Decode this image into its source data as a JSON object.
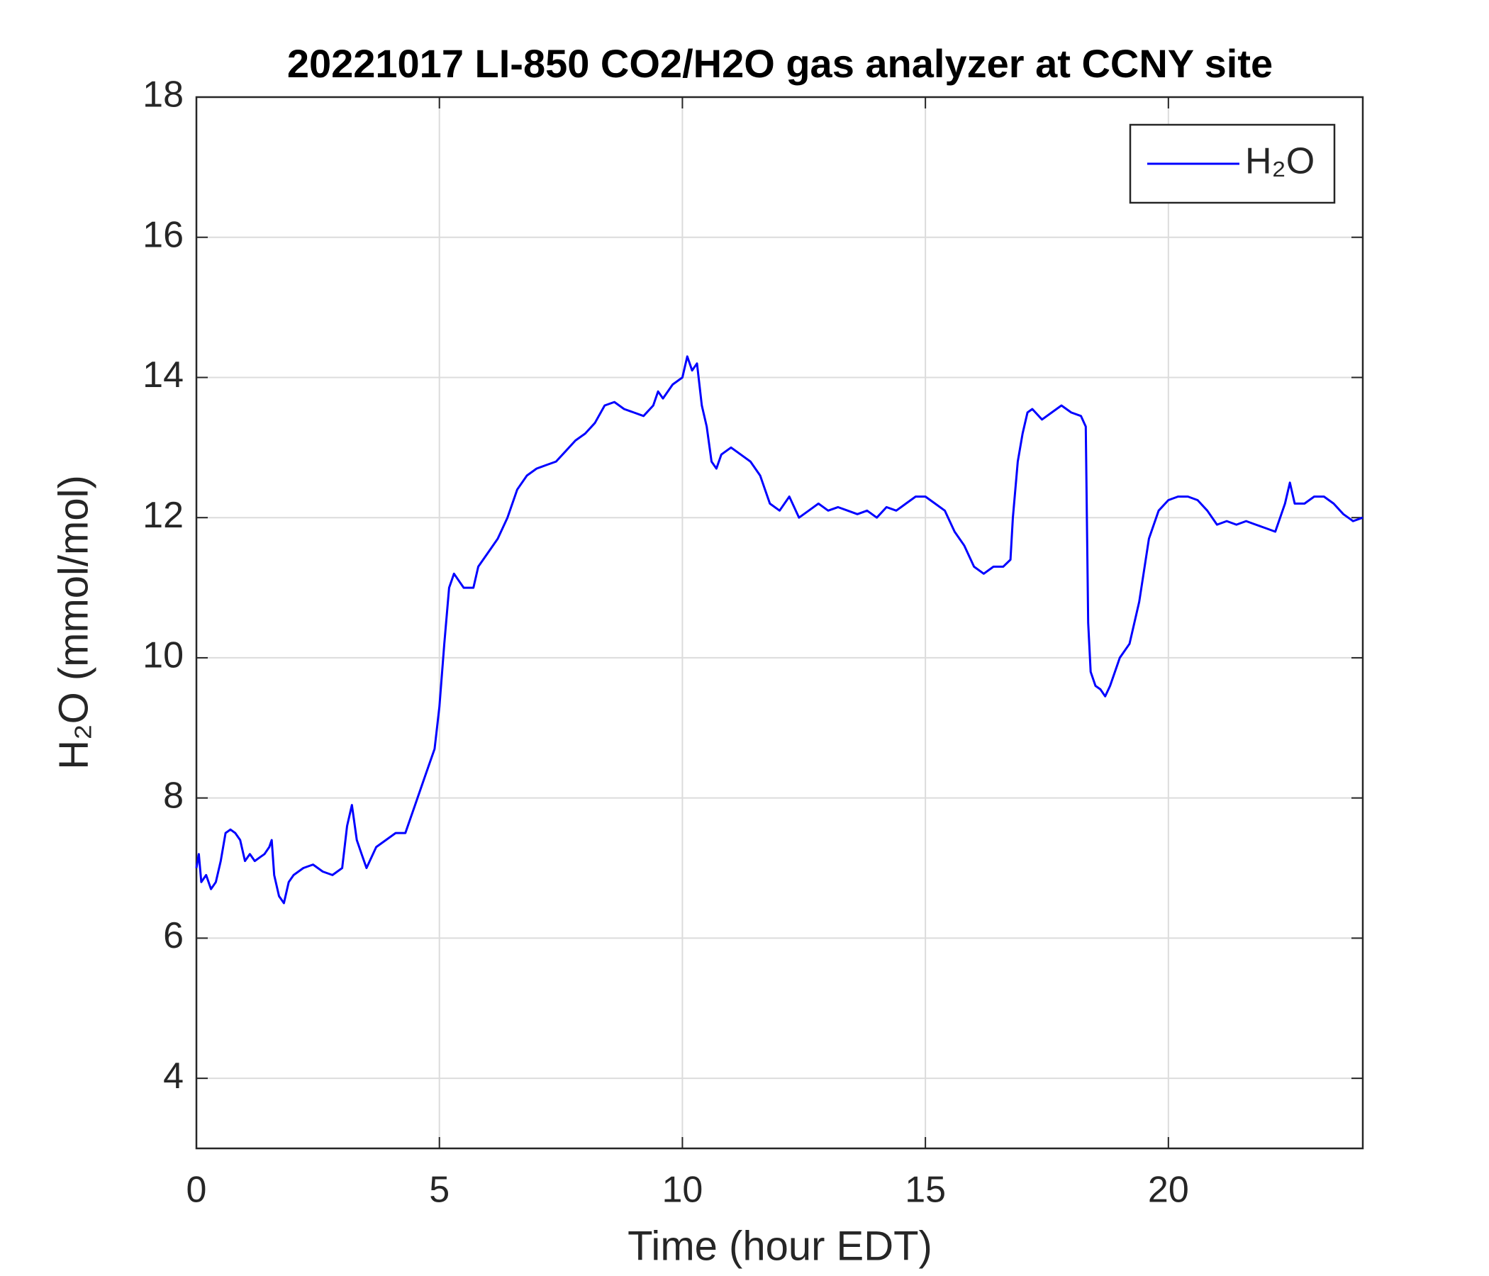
{
  "chart_data": {
    "type": "line",
    "title": "20221017 LI-850 CO2/H2O gas analyzer at CCNY site",
    "x_label": "Time (hour EDT)",
    "y_label": "H₂O (mmol/mol)",
    "xlim": [
      0,
      24
    ],
    "ylim": [
      3,
      18
    ],
    "xticks": [
      0,
      5,
      10,
      15,
      20
    ],
    "yticks": [
      4,
      6,
      8,
      10,
      12,
      14,
      16,
      18
    ],
    "grid": true,
    "legend": "upper right",
    "x": [
      0,
      0.05,
      0.1,
      0.2,
      0.3,
      0.4,
      0.5,
      0.6,
      0.7,
      0.8,
      0.9,
      1.0,
      1.1,
      1.2,
      1.3,
      1.4,
      1.5,
      1.55,
      1.6,
      1.7,
      1.8,
      1.9,
      2.0,
      2.2,
      2.4,
      2.6,
      2.8,
      3.0,
      3.1,
      3.2,
      3.3,
      3.4,
      3.5,
      3.7,
      3.9,
      4.1,
      4.3,
      4.5,
      4.7,
      4.9,
      5.0,
      5.1,
      5.2,
      5.3,
      5.4,
      5.5,
      5.6,
      5.7,
      5.8,
      6.0,
      6.2,
      6.4,
      6.6,
      6.8,
      7.0,
      7.2,
      7.4,
      7.6,
      7.8,
      8.0,
      8.2,
      8.4,
      8.6,
      8.8,
      9.0,
      9.2,
      9.4,
      9.5,
      9.6,
      9.8,
      10.0,
      10.1,
      10.2,
      10.3,
      10.4,
      10.5,
      10.6,
      10.7,
      10.8,
      11.0,
      11.2,
      11.4,
      11.6,
      11.8,
      12.0,
      12.2,
      12.4,
      12.6,
      12.8,
      13.0,
      13.2,
      13.4,
      13.6,
      13.8,
      14.0,
      14.2,
      14.4,
      14.6,
      14.8,
      15.0,
      15.2,
      15.4,
      15.6,
      15.8,
      16.0,
      16.2,
      16.4,
      16.6,
      16.75,
      16.8,
      16.9,
      17.0,
      17.1,
      17.2,
      17.4,
      17.6,
      17.8,
      18.0,
      18.2,
      18.3,
      18.35,
      18.4,
      18.5,
      18.6,
      18.7,
      18.8,
      19.0,
      19.2,
      19.4,
      19.6,
      19.8,
      20.0,
      20.2,
      20.4,
      20.6,
      20.8,
      21.0,
      21.2,
      21.4,
      21.6,
      21.8,
      22.0,
      22.2,
      22.4,
      22.5,
      22.6,
      22.8,
      23.0,
      23.2,
      23.4,
      23.6,
      23.8,
      24.0
    ],
    "series": [
      {
        "name": "H₂O",
        "color": "#0000ff",
        "values": [
          7.0,
          7.2,
          6.8,
          6.9,
          6.7,
          6.8,
          7.1,
          7.5,
          7.55,
          7.5,
          7.4,
          7.1,
          7.2,
          7.1,
          7.15,
          7.2,
          7.3,
          7.4,
          6.9,
          6.6,
          6.5,
          6.8,
          6.9,
          7.0,
          7.05,
          6.95,
          6.9,
          7.0,
          7.6,
          7.9,
          7.4,
          7.2,
          7.0,
          7.3,
          7.4,
          7.5,
          7.5,
          7.9,
          8.3,
          8.7,
          9.3,
          10.2,
          11.0,
          11.2,
          11.1,
          11.0,
          11.0,
          11.0,
          11.3,
          11.5,
          11.7,
          12.0,
          12.4,
          12.6,
          12.7,
          12.75,
          12.8,
          12.95,
          13.1,
          13.2,
          13.35,
          13.6,
          13.65,
          13.55,
          13.5,
          13.45,
          13.6,
          13.8,
          13.7,
          13.9,
          14.0,
          14.3,
          14.1,
          14.2,
          13.6,
          13.3,
          12.8,
          12.7,
          12.9,
          13.0,
          12.9,
          12.8,
          12.6,
          12.2,
          12.1,
          12.3,
          12.0,
          12.1,
          12.2,
          12.1,
          12.15,
          12.1,
          12.05,
          12.1,
          12.0,
          12.15,
          12.1,
          12.2,
          12.3,
          12.3,
          12.2,
          12.1,
          11.8,
          11.6,
          11.3,
          11.2,
          11.3,
          11.3,
          11.4,
          12.0,
          12.8,
          13.2,
          13.5,
          13.55,
          13.4,
          13.5,
          13.6,
          13.5,
          13.45,
          13.3,
          10.5,
          9.8,
          9.6,
          9.55,
          9.45,
          9.6,
          10.0,
          10.2,
          10.8,
          11.7,
          12.1,
          12.25,
          12.3,
          12.3,
          12.25,
          12.1,
          11.9,
          11.95,
          11.9,
          11.95,
          11.9,
          11.85,
          11.8,
          12.2,
          12.5,
          12.2,
          12.2,
          12.3,
          12.3,
          12.2,
          12.05,
          11.95,
          12.0
        ]
      }
    ]
  }
}
